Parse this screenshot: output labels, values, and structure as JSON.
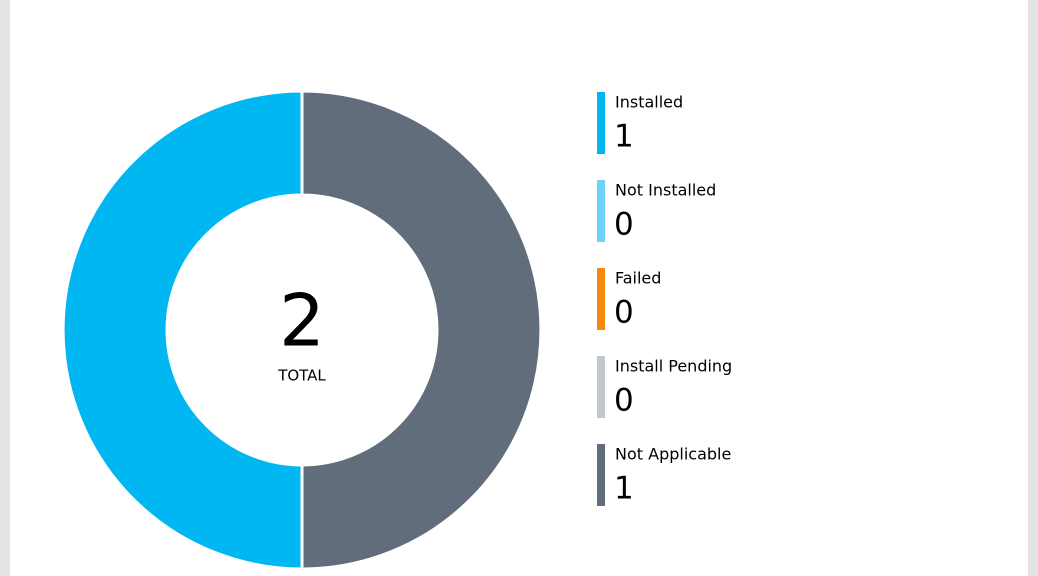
{
  "chart_data": {
    "type": "donut",
    "categories": [
      "Installed",
      "Not Installed",
      "Failed",
      "Install Pending",
      "Not Applicable"
    ],
    "values": [
      1,
      0,
      0,
      0,
      1
    ],
    "colors": [
      "#00b7f1",
      "#6fd3f6",
      "#f7890c",
      "#c3c8cf",
      "#616d7a"
    ],
    "total": 2,
    "total_label": "TOTAL"
  }
}
